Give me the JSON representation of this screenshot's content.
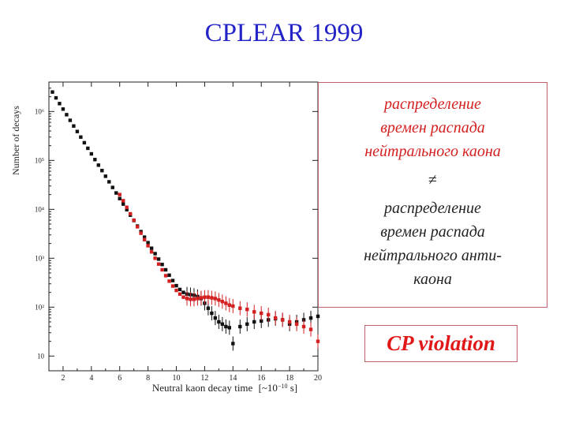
{
  "slide": {
    "title": "CPLEAR 1999"
  },
  "text_box": {
    "kaon_text": "распределение\nвремен распада\nнейтрального каона",
    "neq_symbol": "≠",
    "antikaon_text": "распределение\nвремен распада\nнейтрального анти-\nкаона"
  },
  "cp_label": "CP violation",
  "colors": {
    "title": "#2323c8",
    "kaon_series": "#111111",
    "antikaon_series": "#d42020",
    "box_border": "#c0606a"
  },
  "chart_data": {
    "type": "scatter",
    "title": "",
    "xlabel": "Neutral kaon decay time",
    "xlabel_unit_html": "[~10<tspan baseline-shift=\"super\" font-size=\"8\">−10</tspan> s]",
    "ylabel": "Number of decays",
    "xlim": [
      1,
      20
    ],
    "x_ticks": [
      2,
      4,
      6,
      8,
      10,
      12,
      14,
      16,
      18,
      20
    ],
    "x_tick_labels": [
      "2",
      "4",
      "6",
      "8",
      "10",
      "12",
      "14",
      "16",
      "18",
      "20"
    ],
    "y_scale": "log",
    "ylim": [
      5,
      4000000
    ],
    "y_ticks": [
      10,
      100,
      1000,
      10000,
      100000,
      1000000
    ],
    "y_tick_labels": [
      "10",
      "10²",
      "10³",
      "10⁴",
      "10⁵",
      "10⁶"
    ],
    "grid": false,
    "series": [
      {
        "color": "#111111",
        "points": [
          [
            1.25,
            2500000
          ],
          [
            1.5,
            1900000
          ],
          [
            1.75,
            1450000
          ],
          [
            2.0,
            1120000
          ],
          [
            2.25,
            860000
          ],
          [
            2.5,
            660000
          ],
          [
            2.75,
            505000
          ],
          [
            3.0,
            390000
          ],
          [
            3.25,
            300000
          ],
          [
            3.5,
            230000
          ],
          [
            3.75,
            177000
          ],
          [
            4.0,
            136000
          ],
          [
            4.25,
            104000
          ],
          [
            4.5,
            80000
          ],
          [
            4.75,
            62000
          ],
          [
            5.0,
            47500
          ],
          [
            5.25,
            36500
          ],
          [
            5.5,
            28000
          ],
          [
            5.75,
            21600
          ],
          [
            6.0,
            16600
          ],
          [
            6.25,
            12800
          ],
          [
            6.5,
            9800
          ],
          [
            6.75,
            7600
          ],
          [
            7.0,
            5900
          ],
          [
            7.25,
            4550
          ],
          [
            7.5,
            3500
          ],
          [
            7.75,
            2700
          ],
          [
            8.0,
            2080
          ],
          [
            8.25,
            1600
          ],
          [
            8.5,
            1240
          ],
          [
            8.75,
            960
          ],
          [
            9.0,
            745
          ],
          [
            9.25,
            580
          ],
          [
            9.5,
            450
          ],
          [
            9.75,
            350
          ],
          [
            10.0,
            275
          ],
          [
            10.25,
            230
          ],
          [
            10.5,
            200
          ],
          [
            10.75,
            185
          ],
          [
            11.0,
            180
          ],
          [
            11.25,
            175
          ],
          [
            11.5,
            165
          ],
          [
            11.75,
            150
          ],
          [
            12.0,
            120
          ],
          [
            12.25,
            95
          ],
          [
            12.5,
            75
          ],
          [
            12.75,
            60
          ],
          [
            13.0,
            50
          ],
          [
            13.25,
            45
          ],
          [
            13.5,
            40
          ],
          [
            13.75,
            38
          ],
          [
            14.0,
            18
          ],
          [
            14.5,
            40
          ],
          [
            15.0,
            45
          ],
          [
            15.5,
            50
          ],
          [
            16.0,
            52
          ],
          [
            16.5,
            55
          ],
          [
            17.0,
            58
          ],
          [
            17.5,
            55
          ],
          [
            18.0,
            45
          ],
          [
            18.5,
            50
          ],
          [
            19.0,
            55
          ],
          [
            19.5,
            60
          ],
          [
            20.0,
            65
          ]
        ]
      },
      {
        "color": "#d42020",
        "points": [
          [
            6.0,
            20000
          ],
          [
            6.25,
            15000
          ],
          [
            6.5,
            11000
          ],
          [
            6.75,
            8100
          ],
          [
            7.0,
            6000
          ],
          [
            7.25,
            4400
          ],
          [
            7.5,
            3250
          ],
          [
            7.75,
            2400
          ],
          [
            8.0,
            1800
          ],
          [
            8.25,
            1350
          ],
          [
            8.5,
            1000
          ],
          [
            8.75,
            760
          ],
          [
            9.0,
            580
          ],
          [
            9.25,
            440
          ],
          [
            9.5,
            340
          ],
          [
            9.75,
            270
          ],
          [
            10.0,
            220
          ],
          [
            10.25,
            185
          ],
          [
            10.5,
            160
          ],
          [
            10.75,
            150
          ],
          [
            11.0,
            145
          ],
          [
            11.25,
            145
          ],
          [
            11.5,
            150
          ],
          [
            11.75,
            155
          ],
          [
            12.0,
            160
          ],
          [
            12.25,
            160
          ],
          [
            12.5,
            155
          ],
          [
            12.75,
            150
          ],
          [
            13.0,
            140
          ],
          [
            13.25,
            130
          ],
          [
            13.5,
            120
          ],
          [
            13.75,
            110
          ],
          [
            14.0,
            105
          ],
          [
            14.5,
            95
          ],
          [
            15.0,
            90
          ],
          [
            15.5,
            80
          ],
          [
            16.0,
            75
          ],
          [
            16.5,
            70
          ],
          [
            17.0,
            60
          ],
          [
            17.5,
            55
          ],
          [
            18.0,
            50
          ],
          [
            18.5,
            45
          ],
          [
            19.0,
            40
          ],
          [
            19.5,
            35
          ],
          [
            20.0,
            20
          ]
        ]
      }
    ]
  }
}
